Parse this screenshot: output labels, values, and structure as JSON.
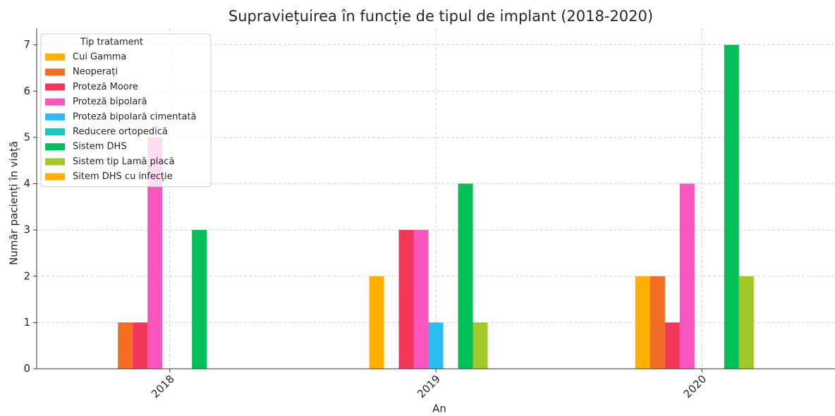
{
  "chart_data": {
    "type": "bar",
    "title": "Supraviețuirea în funcție de tipul de implant (2018-2020)",
    "x_label": "An",
    "y_label": "Număr pacienți în viață",
    "legend_title": "Tip tratament",
    "legend_position": "upper left",
    "grid": true,
    "categories": [
      "2018",
      "2019",
      "2020"
    ],
    "series": [
      {
        "name": "Cui Gamma",
        "color": "#ffb000",
        "values": [
          0,
          2,
          2
        ]
      },
      {
        "name": "Neoperați",
        "color": "#f46d25",
        "values": [
          1,
          0,
          2
        ]
      },
      {
        "name": "Proteză Moore",
        "color": "#f4365a",
        "values": [
          1,
          3,
          1
        ]
      },
      {
        "name": "Proteză bipolară",
        "color": "#f956c0",
        "values": [
          5,
          3,
          4
        ]
      },
      {
        "name": "Proteză bipolară cimentată",
        "color": "#2cbcf4",
        "values": [
          0,
          1,
          0
        ]
      },
      {
        "name": "Reducere ortopedică",
        "color": "#14ccbf",
        "values": [
          0,
          0,
          0
        ]
      },
      {
        "name": "Sistem DHS",
        "color": "#00c057",
        "values": [
          3,
          4,
          7
        ]
      },
      {
        "name": "Sistem tip Lamă placă",
        "color": "#a0c82a",
        "values": [
          0,
          1,
          2
        ]
      },
      {
        "name": "Sitem DHS cu infecție",
        "color": "#ffb000",
        "values": [
          0,
          0,
          0
        ]
      }
    ],
    "ylim": [
      0,
      7.36
    ],
    "yticks": [
      0,
      1,
      2,
      3,
      4,
      5,
      6,
      7
    ]
  }
}
